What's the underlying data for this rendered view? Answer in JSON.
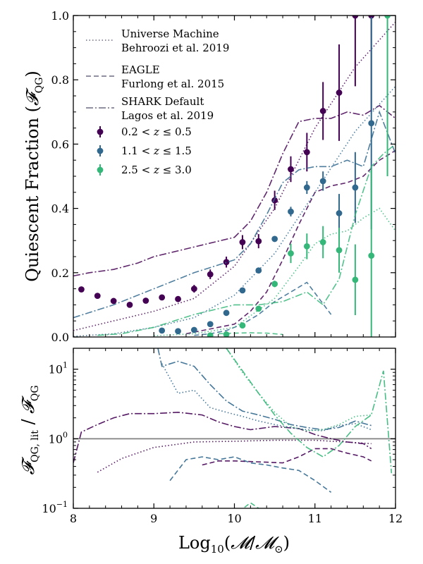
{
  "colors": {
    "low_z": "#440154",
    "mid_z": "#31688e",
    "high_z": "#35b779",
    "reference_line": "#808080",
    "legend_line": "#6b6b80"
  },
  "chart_data": [
    {
      "type": "line",
      "panel": "top",
      "title": "",
      "xlabel": "",
      "ylabel": "Quiescent Fraction (𝓕QG)",
      "xlim": [
        8,
        12
      ],
      "ylim": [
        0,
        1
      ],
      "xticks": [
        8,
        9,
        10,
        11,
        12
      ],
      "yticks": [
        0.0,
        0.2,
        0.4,
        0.6,
        0.8,
        1.0
      ],
      "ytick_labels": [
        "0.0",
        "0.2",
        "0.4",
        "0.6",
        "0.8",
        "1.0"
      ],
      "legend_position": "top-left",
      "model_legend": [
        {
          "style": "dotted",
          "line1": "Universe Machine",
          "line2": "Behroozi et al. 2019"
        },
        {
          "style": "dashed",
          "line1": "EAGLE",
          "line2": "Furlong et al. 2015"
        },
        {
          "style": "dashdot",
          "line1": "SHARK Default",
          "line2": "Lagos et al. 2019"
        }
      ],
      "series": [
        {
          "name": "0.2 < z ≤ 0.5",
          "color": "#440154",
          "points": [
            {
              "x": 8.1,
              "y": 0.148,
              "err": 0
            },
            {
              "x": 8.3,
              "y": 0.128,
              "err": 0
            },
            {
              "x": 8.5,
              "y": 0.112,
              "err": 0
            },
            {
              "x": 8.7,
              "y": 0.1,
              "err": 0
            },
            {
              "x": 8.9,
              "y": 0.113,
              "err": 0
            },
            {
              "x": 9.1,
              "y": 0.123,
              "err": 0
            },
            {
              "x": 9.3,
              "y": 0.118,
              "err": 0
            },
            {
              "x": 9.5,
              "y": 0.15,
              "err": 0.012
            },
            {
              "x": 9.7,
              "y": 0.195,
              "err": 0.015
            },
            {
              "x": 9.9,
              "y": 0.233,
              "err": 0.017
            },
            {
              "x": 10.1,
              "y": 0.295,
              "err": 0.022
            },
            {
              "x": 10.3,
              "y": 0.298,
              "err": 0.022
            },
            {
              "x": 10.5,
              "y": 0.425,
              "err": 0.03
            },
            {
              "x": 10.7,
              "y": 0.522,
              "err": 0.04
            },
            {
              "x": 10.9,
              "y": 0.575,
              "err": 0.06
            },
            {
              "x": 11.1,
              "y": 0.703,
              "err": 0.09
            },
            {
              "x": 11.3,
              "y": 0.76,
              "err": 0.15
            },
            {
              "x": 11.5,
              "y": 1.0,
              "err": 0.22
            },
            {
              "x": 11.7,
              "y": 1.0,
              "err": 0.3
            }
          ],
          "models": {
            "universe_machine": {
              "x": [
                8.0,
                8.5,
                9.0,
                9.5,
                10.0,
                10.5,
                11.0,
                11.5,
                12.0
              ],
              "y": [
                0.02,
                0.05,
                0.08,
                0.12,
                0.22,
                0.4,
                0.65,
                0.84,
                0.98
              ]
            },
            "eagle": {
              "x": [
                9.4,
                9.6,
                9.8,
                10.0,
                10.2,
                10.4,
                10.6,
                10.8,
                11.0,
                11.2,
                11.4,
                11.6,
                11.8,
                12.0
              ],
              "y": [
                0.01,
                0.02,
                0.03,
                0.04,
                0.08,
                0.14,
                0.24,
                0.35,
                0.45,
                0.47,
                0.48,
                0.5,
                0.55,
                0.58
              ]
            },
            "shark": {
              "x": [
                8.0,
                8.2,
                8.5,
                8.8,
                9.0,
                9.5,
                10.0,
                10.2,
                10.4,
                10.6,
                10.8,
                11.0,
                11.2,
                11.4,
                11.6,
                11.8,
                12.0
              ],
              "y": [
                0.19,
                0.2,
                0.21,
                0.23,
                0.25,
                0.28,
                0.31,
                0.36,
                0.45,
                0.57,
                0.67,
                0.68,
                0.68,
                0.7,
                0.69,
                0.72,
                0.68
              ]
            }
          }
        },
        {
          "name": "1.1 < z ≤ 1.5",
          "color": "#31688e",
          "points": [
            {
              "x": 9.1,
              "y": 0.02,
              "err": 0
            },
            {
              "x": 9.3,
              "y": 0.018,
              "err": 0
            },
            {
              "x": 9.5,
              "y": 0.022,
              "err": 0
            },
            {
              "x": 9.7,
              "y": 0.04,
              "err": 0
            },
            {
              "x": 9.9,
              "y": 0.075,
              "err": 0
            },
            {
              "x": 10.1,
              "y": 0.145,
              "err": 0
            },
            {
              "x": 10.3,
              "y": 0.207,
              "err": 0
            },
            {
              "x": 10.5,
              "y": 0.305,
              "err": 0
            },
            {
              "x": 10.7,
              "y": 0.39,
              "err": 0.015
            },
            {
              "x": 10.9,
              "y": 0.465,
              "err": 0.02
            },
            {
              "x": 11.1,
              "y": 0.485,
              "err": 0.03
            },
            {
              "x": 11.3,
              "y": 0.385,
              "err": 0.06
            },
            {
              "x": 11.5,
              "y": 0.465,
              "err": 0.11
            },
            {
              "x": 11.7,
              "y": 0.665,
              "err": 0.33
            }
          ],
          "models": {
            "universe_machine": {
              "x": [
                8.0,
                8.5,
                9.0,
                9.5,
                10.0,
                10.5,
                11.0,
                11.5,
                12.0
              ],
              "y": [
                0.002,
                0.01,
                0.03,
                0.06,
                0.13,
                0.26,
                0.45,
                0.64,
                0.78
              ]
            },
            "eagle": {
              "x": [
                9.5,
                9.7,
                9.9,
                10.1,
                10.3,
                10.5,
                10.7,
                10.9,
                11.05,
                11.2
              ],
              "y": [
                0.005,
                0.01,
                0.02,
                0.04,
                0.07,
                0.11,
                0.14,
                0.17,
                0.12,
                0.07
              ]
            },
            "shark": {
              "x": [
                8.0,
                8.5,
                9.0,
                9.5,
                10.0,
                10.2,
                10.4,
                10.6,
                10.8,
                11.0,
                11.2,
                11.4,
                11.6,
                11.8,
                12.0
              ],
              "y": [
                0.06,
                0.1,
                0.15,
                0.2,
                0.24,
                0.29,
                0.38,
                0.48,
                0.52,
                0.53,
                0.53,
                0.55,
                0.53,
                0.7,
                0.57
              ]
            }
          }
        },
        {
          "name": "2.5 < z ≤ 3.0",
          "color": "#35b779",
          "points": [
            {
              "x": 9.7,
              "y": 0.005,
              "err": 0
            },
            {
              "x": 9.9,
              "y": 0.008,
              "err": 0
            },
            {
              "x": 10.1,
              "y": 0.036,
              "err": 0
            },
            {
              "x": 10.3,
              "y": 0.088,
              "err": 0
            },
            {
              "x": 10.5,
              "y": 0.165,
              "err": 0.01
            },
            {
              "x": 10.7,
              "y": 0.26,
              "err": 0.03
            },
            {
              "x": 10.9,
              "y": 0.282,
              "err": 0.04
            },
            {
              "x": 11.1,
              "y": 0.295,
              "err": 0.05
            },
            {
              "x": 11.3,
              "y": 0.27,
              "err": 0.07
            },
            {
              "x": 11.5,
              "y": 0.178,
              "err": 0.11
            },
            {
              "x": 11.7,
              "y": 0.253,
              "err": 0.27
            },
            {
              "x": 11.9,
              "y": 1.0,
              "err": 0.5
            }
          ],
          "models": {
            "universe_machine": {
              "x": [
                9.0,
                9.5,
                10.0,
                10.5,
                10.8,
                11.0,
                11.2,
                11.4,
                11.6,
                11.8,
                12.0
              ],
              "y": [
                0.004,
                0.01,
                0.03,
                0.12,
                0.22,
                0.29,
                0.32,
                0.33,
                0.37,
                0.4,
                0.33
              ]
            },
            "eagle": {
              "x": [
                9.8,
                10.0,
                10.2,
                10.4,
                10.6
              ],
              "y": [
                0.01,
                0.012,
                0.013,
                0.012,
                0.008
              ]
            },
            "shark": {
              "x": [
                8.3,
                8.6,
                9.0,
                9.5,
                10.0,
                10.3,
                10.6,
                10.9,
                11.1,
                11.3,
                11.5,
                11.7,
                11.85,
                12.0
              ],
              "y": [
                0.005,
                0.01,
                0.03,
                0.07,
                0.1,
                0.1,
                0.11,
                0.14,
                0.1,
                0.18,
                0.38,
                0.53,
                0.57,
                0.6
              ]
            }
          }
        }
      ]
    },
    {
      "type": "line",
      "panel": "bottom",
      "title": "",
      "xlabel": "Log10(𝓜/𝓜⊙)",
      "ylabel": "𝓕QG,lit / 𝓕QG",
      "xlim": [
        8,
        12
      ],
      "ylim": [
        0.1,
        20
      ],
      "yscale": "log",
      "reference_line_y": 1.0,
      "xticks": [
        8,
        9,
        10,
        11,
        12
      ],
      "xtick_labels": [
        "8",
        "9",
        "10",
        "11",
        "12"
      ],
      "yticks": [
        0.1,
        1,
        10
      ],
      "ytick_labels": [
        {
          "base": "10",
          "exp": "−1"
        },
        {
          "base": "10",
          "exp": "0"
        },
        {
          "base": "10",
          "exp": "1"
        }
      ],
      "series": [
        {
          "name": "",
          "color": "#440154",
          "universe_machine": {
            "x": [
              8.3,
              8.6,
              9.0,
              9.5,
              10.0,
              10.5,
              11.0,
              11.5,
              11.7
            ],
            "y": [
              0.33,
              0.52,
              0.75,
              0.9,
              0.92,
              0.95,
              0.95,
              0.88,
              0.85
            ]
          },
          "eagle": {
            "x": [
              9.6,
              9.8,
              10.0,
              10.2,
              10.4,
              10.6,
              10.8,
              11.0,
              11.2,
              11.4,
              11.6,
              11.7
            ],
            "y": [
              0.42,
              0.48,
              0.48,
              0.47,
              0.46,
              0.45,
              0.55,
              0.72,
              0.72,
              0.62,
              0.55,
              0.48
            ]
          },
          "shark": {
            "x": [
              8.0,
              8.1,
              8.3,
              8.5,
              8.7,
              9.0,
              9.3,
              9.6,
              9.8,
              10.0,
              10.2,
              10.5,
              10.8,
              11.0,
              11.2,
              11.4,
              11.6,
              11.7
            ],
            "y": [
              0.45,
              1.25,
              1.6,
              2.0,
              2.3,
              2.3,
              2.4,
              2.2,
              1.75,
              1.5,
              1.35,
              1.5,
              1.4,
              1.15,
              1.0,
              0.9,
              0.85,
              0.72
            ]
          }
        },
        {
          "name": "",
          "color": "#31688e",
          "universe_machine": {
            "x": [
              9.1,
              9.3,
              9.5,
              9.7,
              9.9,
              10.1,
              10.3,
              10.5,
              10.7,
              10.9,
              11.1,
              11.3,
              11.5,
              11.7
            ],
            "y": [
              12,
              4.5,
              5.0,
              2.8,
              2.4,
              2.1,
              1.8,
              1.6,
              1.45,
              1.35,
              1.3,
              1.55,
              1.65,
              1.35
            ]
          },
          "eagle": {
            "x": [
              9.2,
              9.4,
              9.6,
              9.8,
              10.0,
              10.2,
              10.4,
              10.6,
              10.8,
              11.0,
              11.2
            ],
            "y": [
              0.25,
              0.5,
              0.55,
              0.5,
              0.55,
              0.45,
              0.42,
              0.38,
              0.35,
              0.25,
              0.17
            ]
          },
          "shark": {
            "x": [
              9.05,
              9.1,
              9.3,
              9.5,
              9.7,
              9.9,
              10.1,
              10.3,
              10.5,
              10.7,
              10.9,
              11.1,
              11.3,
              11.5,
              11.7
            ],
            "y": [
              20,
              11,
              13,
              11,
              6.0,
              3.5,
              2.5,
              2.2,
              1.9,
              1.6,
              1.45,
              1.35,
              1.45,
              1.8,
              1.55
            ]
          }
        },
        {
          "name": "",
          "color": "#35b779",
          "universe_machine": {
            "x": [
              9.9,
              10.1,
              10.3,
              10.5,
              10.7,
              10.9,
              11.1,
              11.3,
              11.5,
              11.7
            ],
            "y": [
              20,
              9,
              4.5,
              2.4,
              1.5,
              1.3,
              1.35,
              1.6,
              2.1,
              2.2
            ]
          },
          "eagle": {
            "x": [
              9.9,
              10.0,
              10.2,
              10.5
            ],
            "y": [
              0.1,
              0.08,
              0.12,
              0.07
            ]
          },
          "shark": {
            "x": [
              9.9,
              10.1,
              10.3,
              10.5,
              10.7,
              10.9,
              11.1,
              11.3,
              11.5,
              11.7,
              11.85,
              11.95
            ],
            "y": [
              20,
              9.5,
              4.5,
              2.2,
              1.2,
              0.75,
              0.55,
              0.8,
              1.5,
              2.2,
              9.5,
              0.32
            ]
          }
        }
      ]
    }
  ]
}
